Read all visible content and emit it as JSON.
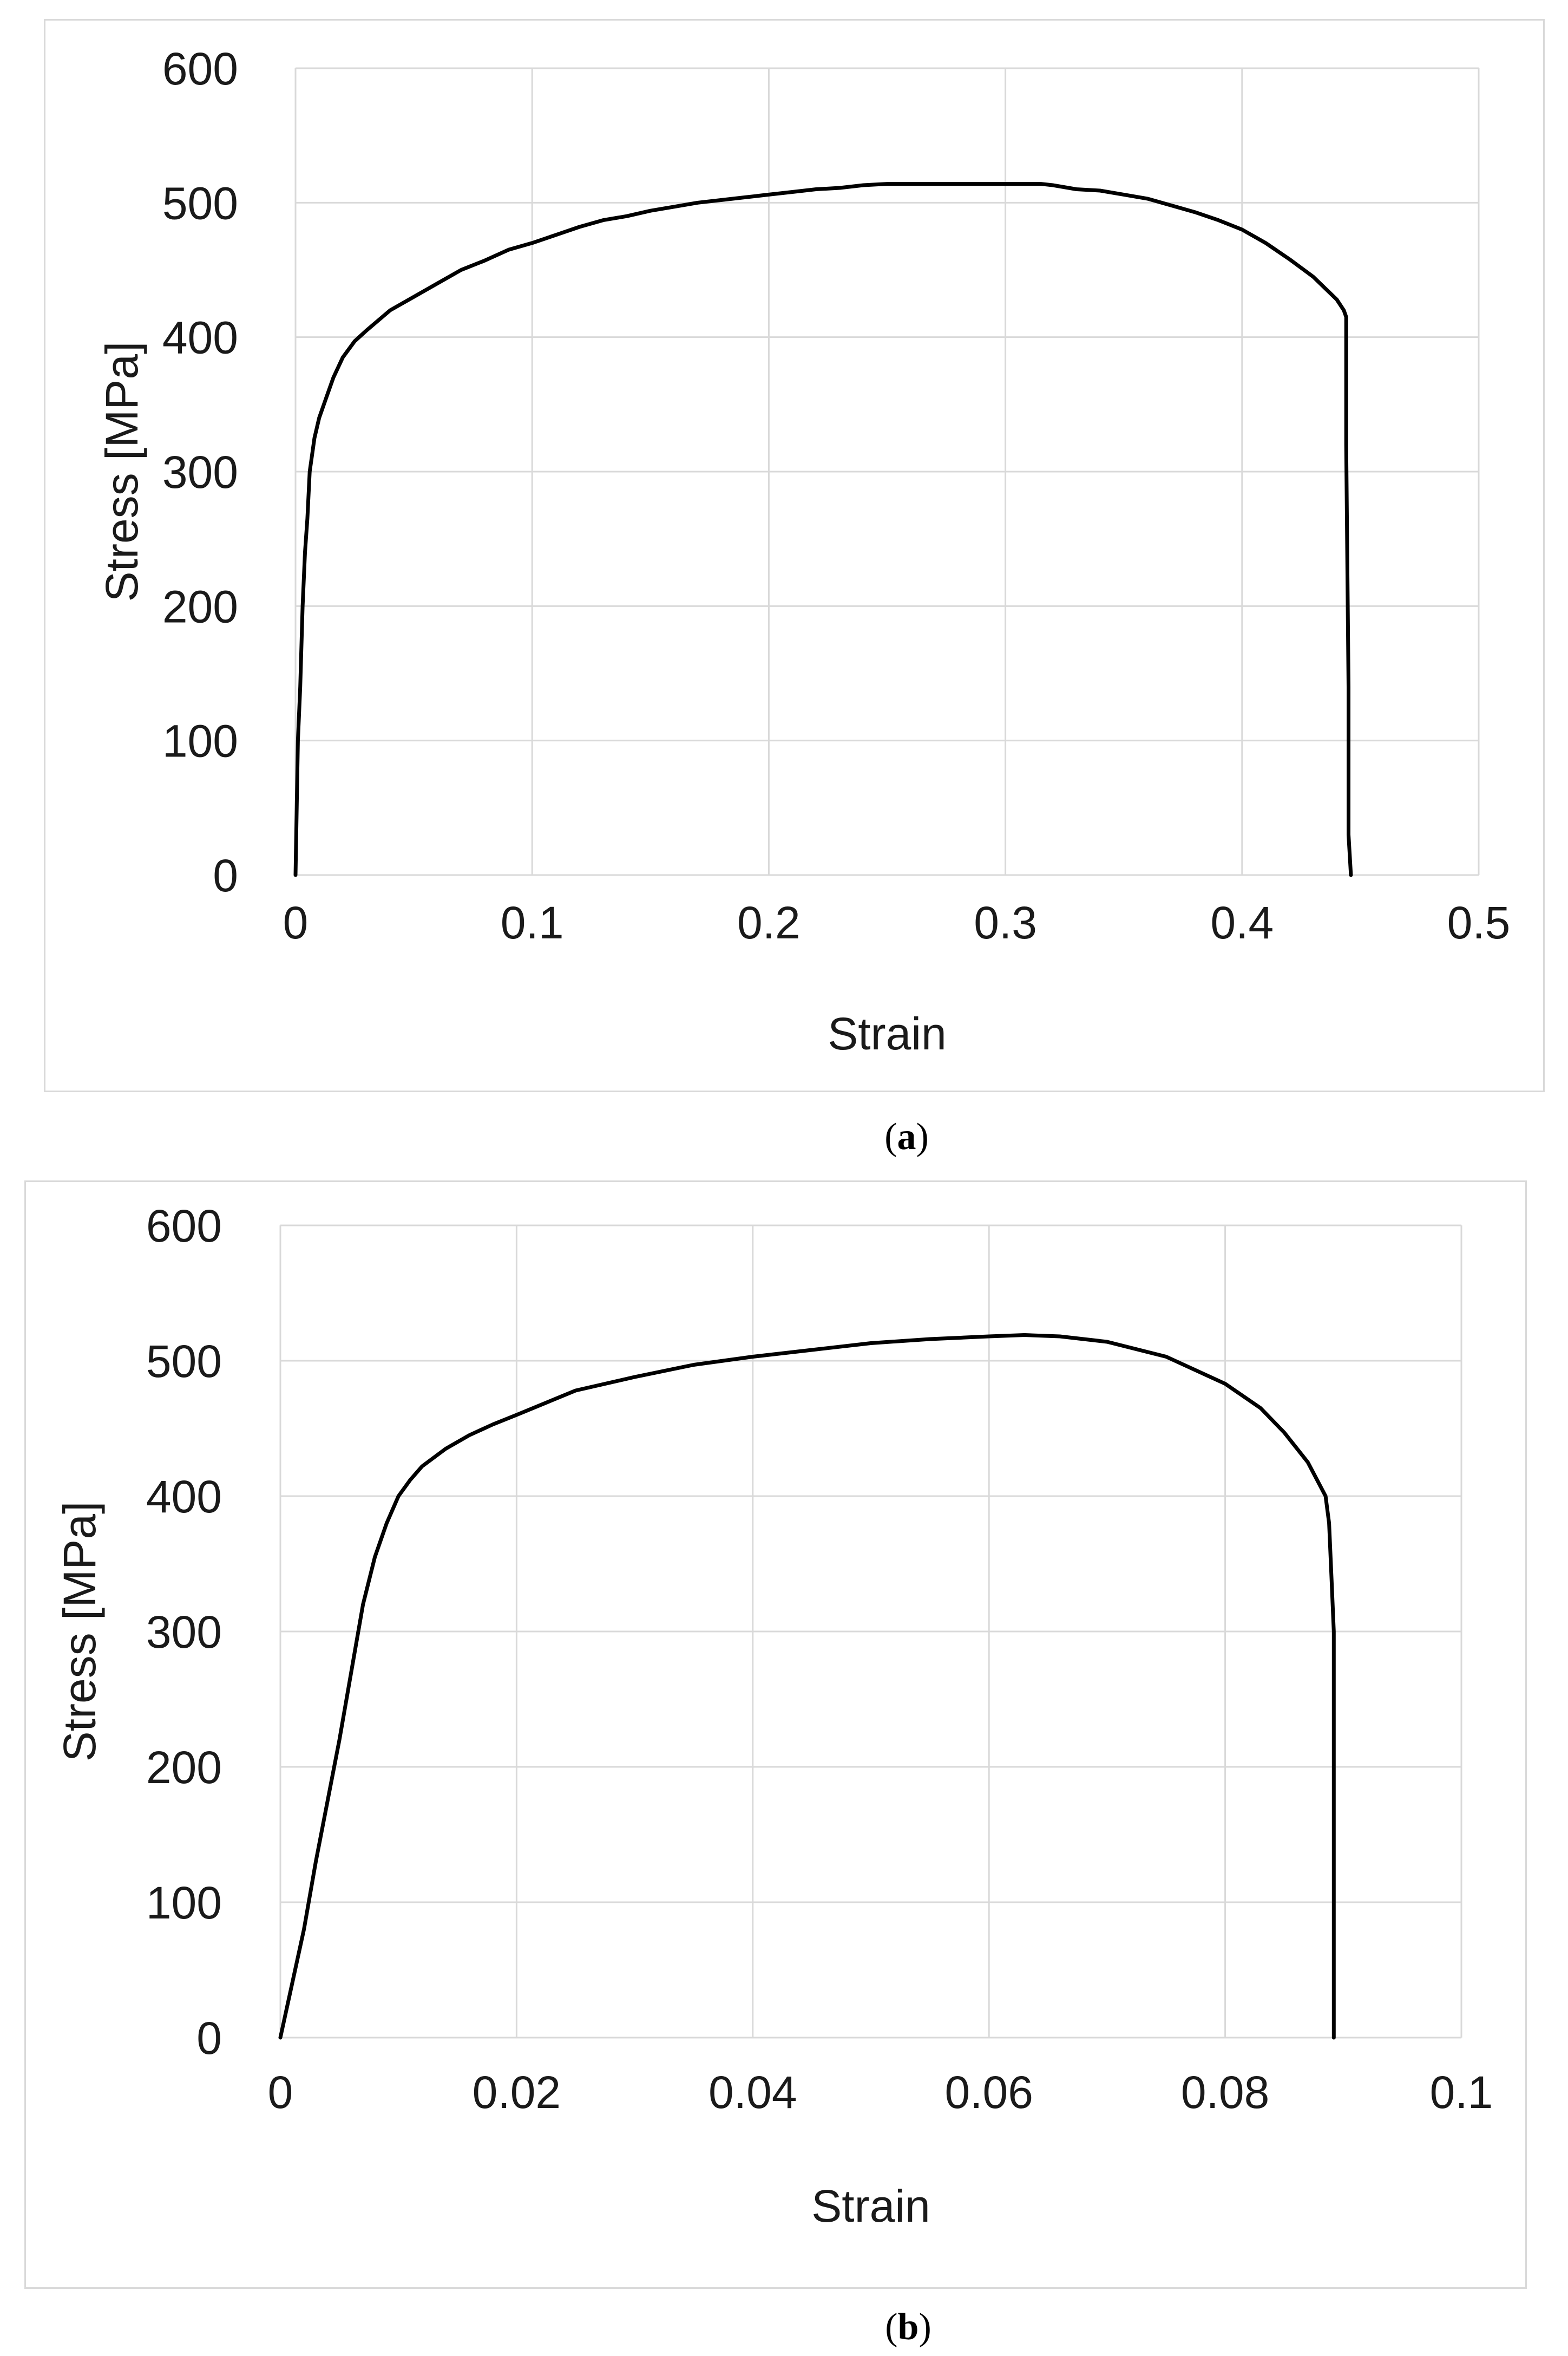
{
  "chart_data": [
    {
      "panel": "(a)",
      "type": "line",
      "title": "",
      "xlabel": "Strain",
      "ylabel": "Stress [MPa]",
      "xlim": [
        0,
        0.5
      ],
      "ylim": [
        0,
        600
      ],
      "xticks": [
        "0",
        "0.1",
        "0.2",
        "0.3",
        "0.4",
        "0.5"
      ],
      "yticks": [
        "0",
        "100",
        "200",
        "300",
        "400",
        "500",
        "600"
      ],
      "grid": true,
      "legend": "none",
      "line_color": "#000000",
      "series": [
        {
          "x": [
            0,
            0.001,
            0.002,
            0.003,
            0.004,
            0.005,
            0.006,
            0.008,
            0.01,
            0.013,
            0.016,
            0.02,
            0.025,
            0.03,
            0.04,
            0.05,
            0.06,
            0.07,
            0.08,
            0.09,
            0.1,
            0.11,
            0.12,
            0.13,
            0.14,
            0.15,
            0.16,
            0.17,
            0.18,
            0.19,
            0.2,
            0.21,
            0.22,
            0.23,
            0.24,
            0.25,
            0.26,
            0.28,
            0.3,
            0.315,
            0.32,
            0.33,
            0.34,
            0.35,
            0.36,
            0.37,
            0.38,
            0.39,
            0.4,
            0.41,
            0.42,
            0.43,
            0.44,
            0.443,
            0.444,
            0.444,
            0.445,
            0.445,
            0.446
          ],
          "y": [
            0,
            100,
            140,
            200,
            240,
            265,
            300,
            325,
            340,
            355,
            370,
            385,
            397,
            405,
            420,
            430,
            440,
            450,
            457,
            465,
            470,
            476,
            482,
            487,
            490,
            494,
            497,
            500,
            502,
            504,
            506,
            508,
            510,
            511,
            513,
            514,
            514,
            514,
            514,
            514,
            513,
            510,
            509,
            506,
            503,
            498,
            493,
            487,
            480,
            470,
            458,
            445,
            428,
            420,
            415,
            320,
            140,
            30,
            0
          ]
        }
      ]
    },
    {
      "panel": "(b)",
      "type": "line",
      "title": "",
      "xlabel": "Strain",
      "ylabel": "Stress [MPa]",
      "xlim": [
        0,
        0.1
      ],
      "ylim": [
        0,
        600
      ],
      "xticks": [
        "0",
        "0.02",
        "0.04",
        "0.06",
        "0.08",
        "0.1"
      ],
      "yticks": [
        "0",
        "100",
        "200",
        "300",
        "400",
        "500",
        "600"
      ],
      "grid": true,
      "legend": "none",
      "line_color": "#000000",
      "series": [
        {
          "x": [
            0,
            0.001,
            0.002,
            0.003,
            0.004,
            0.005,
            0.006,
            0.007,
            0.008,
            0.009,
            0.01,
            0.011,
            0.012,
            0.014,
            0.016,
            0.018,
            0.02,
            0.025,
            0.03,
            0.035,
            0.04,
            0.045,
            0.05,
            0.055,
            0.06,
            0.063,
            0.066,
            0.07,
            0.075,
            0.08,
            0.083,
            0.085,
            0.087,
            0.0885,
            0.0888,
            0.089,
            0.0892,
            0.0892
          ],
          "y": [
            0,
            40,
            80,
            130,
            175,
            220,
            270,
            320,
            355,
            380,
            400,
            412,
            422,
            435,
            445,
            453,
            460,
            478,
            488,
            497,
            503,
            508,
            513,
            516,
            518,
            519,
            518,
            514,
            503,
            483,
            465,
            447,
            425,
            400,
            380,
            340,
            300,
            0
          ]
        }
      ]
    }
  ],
  "captions": {
    "a": {
      "open": "(",
      "letter": "a",
      "close": ")"
    },
    "b": {
      "open": "(",
      "letter": "b",
      "close": ")"
    }
  }
}
